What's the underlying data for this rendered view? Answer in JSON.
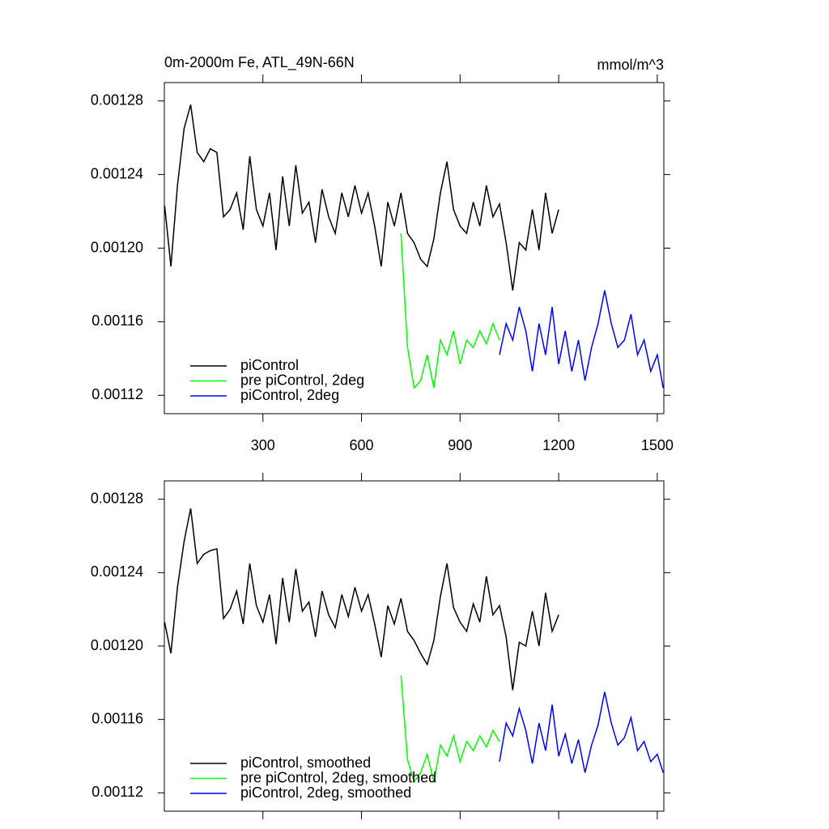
{
  "chart_data": [
    {
      "type": "line",
      "title": "0m-2000m Fe, ATL_49N-66N",
      "units": "mmol/m^3",
      "xlim": [
        0,
        1520
      ],
      "xticks": [
        300,
        600,
        900,
        1200,
        1500
      ],
      "xtick_labels": true,
      "ylim": [
        0.00111,
        0.00129
      ],
      "yticks": [
        0.00112,
        0.00116,
        {
          "value": 0.0012,
          "label": "0.00120"
        },
        0.00124,
        0.00128
      ],
      "series": [
        {
          "name": "piControl",
          "color": "#000000",
          "x": [
            1,
            20,
            40,
            60,
            80,
            100,
            120,
            140,
            160,
            180,
            200,
            220,
            240,
            260,
            280,
            300,
            320,
            340,
            360,
            380,
            400,
            420,
            440,
            460,
            480,
            500,
            520,
            540,
            560,
            580,
            600,
            620,
            640,
            660,
            680,
            700,
            720,
            740,
            760,
            780,
            800,
            820,
            840,
            860,
            880,
            900,
            920,
            940,
            960,
            980,
            1000,
            1020,
            1040,
            1060,
            1080,
            1100,
            1120,
            1140,
            1160,
            1180,
            1200
          ],
          "values": [
            0.001223,
            0.00119,
            0.001234,
            0.001265,
            0.001278,
            0.001252,
            0.001247,
            0.001254,
            0.001252,
            0.001217,
            0.001221,
            0.00123,
            0.00121,
            0.00125,
            0.001221,
            0.001212,
            0.00123,
            0.001199,
            0.001239,
            0.001212,
            0.001245,
            0.001219,
            0.001225,
            0.001203,
            0.001232,
            0.001217,
            0.001208,
            0.00123,
            0.001217,
            0.001234,
            0.001219,
            0.00123,
            0.001212,
            0.00119,
            0.001225,
            0.001212,
            0.00123,
            0.001208,
            0.001203,
            0.001194,
            0.00119,
            0.001205,
            0.00123,
            0.001247,
            0.001221,
            0.001212,
            0.001208,
            0.001225,
            0.001212,
            0.001234,
            0.001217,
            0.001224,
            0.001203,
            0.001177,
            0.001203,
            0.001199,
            0.001221,
            0.001199,
            0.00123,
            0.001208,
            0.001221
          ]
        },
        {
          "name": "pre piControl, 2deg",
          "color": "#00ff00",
          "x": [
            720,
            740,
            760,
            780,
            800,
            820,
            840,
            860,
            880,
            900,
            920,
            940,
            960,
            980,
            1000,
            1020
          ],
          "values": [
            0.001208,
            0.001146,
            0.001124,
            0.001128,
            0.001142,
            0.001124,
            0.00115,
            0.001142,
            0.001155,
            0.001137,
            0.00115,
            0.001146,
            0.001155,
            0.001148,
            0.001159,
            0.00115
          ]
        },
        {
          "name": "piControl, 2deg",
          "color": "#0000ff",
          "x": [
            1020,
            1040,
            1060,
            1080,
            1100,
            1120,
            1140,
            1160,
            1180,
            1200,
            1220,
            1240,
            1260,
            1280,
            1300,
            1320,
            1340,
            1360,
            1380,
            1400,
            1420,
            1440,
            1460,
            1480,
            1500,
            1518
          ],
          "values": [
            0.001142,
            0.001159,
            0.00115,
            0.001168,
            0.001155,
            0.001133,
            0.001159,
            0.001142,
            0.001168,
            0.001137,
            0.001155,
            0.001133,
            0.00115,
            0.001128,
            0.001146,
            0.001159,
            0.001177,
            0.001159,
            0.001146,
            0.00115,
            0.001164,
            0.001142,
            0.00115,
            0.001133,
            0.001142,
            0.001124
          ]
        }
      ]
    },
    {
      "type": "line",
      "xlim": [
        0,
        1520
      ],
      "xticks": [
        300,
        600,
        900,
        1200,
        1500
      ],
      "xtick_labels": false,
      "ylim": [
        0.00111,
        0.00129
      ],
      "yticks": [
        0.00112,
        0.00116,
        {
          "value": 0.0012,
          "label": "0.00120"
        },
        0.00124,
        0.00128
      ],
      "series": [
        {
          "name": "piControl, smoothed",
          "color": "#000000",
          "x": [
            1,
            20,
            40,
            60,
            80,
            100,
            120,
            140,
            160,
            180,
            200,
            220,
            240,
            260,
            280,
            300,
            320,
            340,
            360,
            380,
            400,
            420,
            440,
            460,
            480,
            500,
            520,
            540,
            560,
            580,
            600,
            620,
            640,
            660,
            680,
            700,
            720,
            740,
            760,
            780,
            800,
            820,
            840,
            860,
            880,
            900,
            920,
            940,
            960,
            980,
            1000,
            1020,
            1040,
            1060,
            1080,
            1100,
            1120,
            1140,
            1160,
            1180,
            1200
          ],
          "values": [
            0.001213,
            0.001196,
            0.001232,
            0.001257,
            0.001275,
            0.001245,
            0.00125,
            0.001252,
            0.001253,
            0.001215,
            0.00122,
            0.00123,
            0.001212,
            0.001245,
            0.001222,
            0.001213,
            0.001228,
            0.001201,
            0.001237,
            0.001213,
            0.001242,
            0.001219,
            0.001224,
            0.001205,
            0.00123,
            0.001217,
            0.00121,
            0.001228,
            0.001216,
            0.001232,
            0.001219,
            0.001228,
            0.001212,
            0.001194,
            0.001222,
            0.001212,
            0.001226,
            0.001208,
            0.001203,
            0.001196,
            0.00119,
            0.001203,
            0.001227,
            0.001245,
            0.001221,
            0.001213,
            0.001208,
            0.001223,
            0.001213,
            0.001238,
            0.001217,
            0.001222,
            0.001205,
            0.001176,
            0.001202,
            0.0012,
            0.001219,
            0.0012,
            0.001229,
            0.001208,
            0.001217
          ]
        },
        {
          "name": "pre piControl, 2deg, smoothed",
          "color": "#00ff00",
          "x": [
            720,
            740,
            760,
            780,
            800,
            820,
            840,
            860,
            880,
            900,
            920,
            940,
            960,
            980,
            1000,
            1020
          ],
          "values": [
            0.001184,
            0.001138,
            0.001126,
            0.001131,
            0.001141,
            0.001126,
            0.001146,
            0.00114,
            0.001151,
            0.001137,
            0.001148,
            0.001143,
            0.001151,
            0.001145,
            0.001154,
            0.001148
          ]
        },
        {
          "name": "piControl, 2deg, smoothed",
          "color": "#0000ff",
          "x": [
            1020,
            1040,
            1060,
            1080,
            1100,
            1120,
            1140,
            1160,
            1180,
            1200,
            1220,
            1240,
            1260,
            1280,
            1300,
            1320,
            1340,
            1360,
            1380,
            1400,
            1420,
            1440,
            1460,
            1480,
            1500,
            1518
          ],
          "values": [
            0.001137,
            0.001158,
            0.001151,
            0.001166,
            0.001154,
            0.001136,
            0.001158,
            0.001143,
            0.001168,
            0.00114,
            0.001152,
            0.001136,
            0.001149,
            0.001131,
            0.001146,
            0.001157,
            0.001175,
            0.001158,
            0.001146,
            0.00115,
            0.001161,
            0.001143,
            0.001148,
            0.001137,
            0.001141,
            0.001131
          ]
        }
      ]
    }
  ]
}
